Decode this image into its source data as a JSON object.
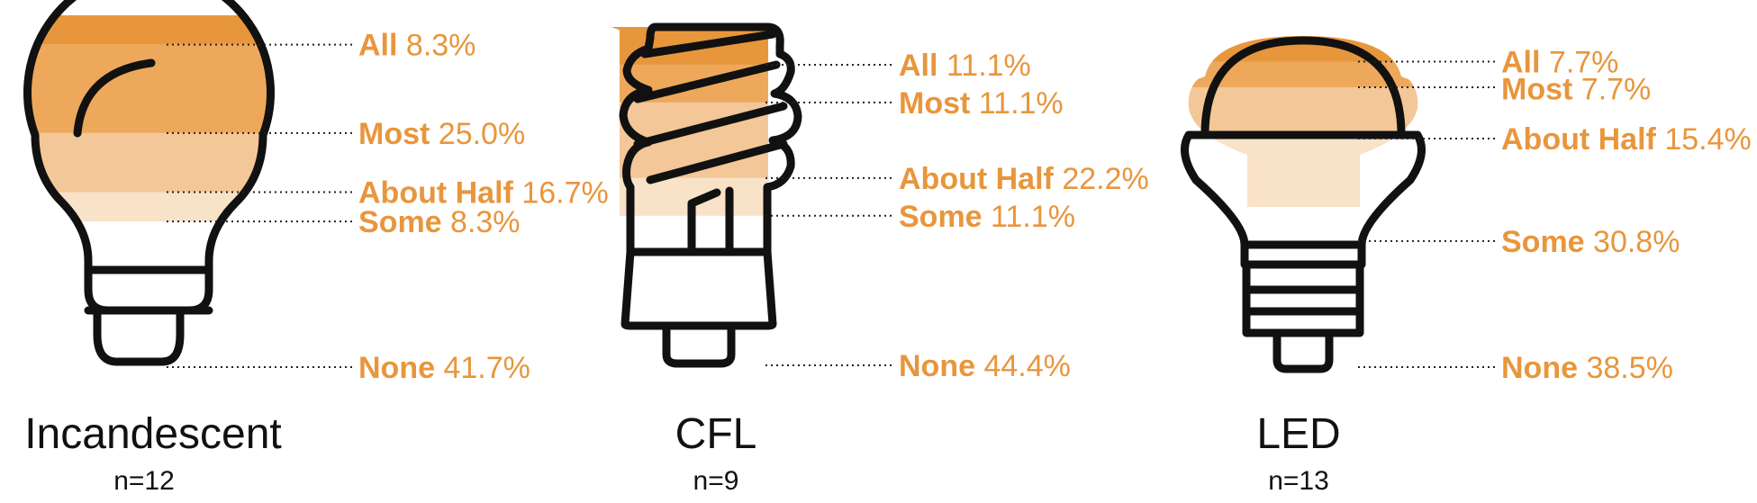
{
  "chart_data": {
    "type": "stacked-bar",
    "colors": {
      "All": "#e8963c",
      "Most": "#eea85b",
      "About Half": "#f3c797",
      "Some": "#f8e2c8",
      "None": "#ffffff",
      "label": "#e8963c",
      "outline": "#111111"
    },
    "bulbs": [
      {
        "title": "Incandescent",
        "n_label": "n=12",
        "icon": "incandescent-bulb-icon",
        "segments": [
          {
            "category": "All",
            "value": 8.3,
            "label": "8.3%"
          },
          {
            "category": "Most",
            "value": 25.0,
            "label": "25.0%"
          },
          {
            "category": "About Half",
            "value": 16.7,
            "label": "16.7%"
          },
          {
            "category": "Some",
            "value": 8.3,
            "label": "8.3%"
          },
          {
            "category": "None",
            "value": 41.7,
            "label": "41.7%"
          }
        ]
      },
      {
        "title": "CFL",
        "n_label": "n=9",
        "icon": "cfl-bulb-icon",
        "segments": [
          {
            "category": "All",
            "value": 11.1,
            "label": "11.1%"
          },
          {
            "category": "Most",
            "value": 11.1,
            "label": "11.1%"
          },
          {
            "category": "About Half",
            "value": 22.2,
            "label": "22.2%"
          },
          {
            "category": "Some",
            "value": 11.1,
            "label": "11.1%"
          },
          {
            "category": "None",
            "value": 44.4,
            "label": "44.4%"
          }
        ]
      },
      {
        "title": "LED",
        "n_label": "n=13",
        "icon": "led-bulb-icon",
        "segments": [
          {
            "category": "All",
            "value": 7.7,
            "label": "7.7%"
          },
          {
            "category": "Most",
            "value": 7.7,
            "label": "7.7%"
          },
          {
            "category": "About Half",
            "value": 15.4,
            "label": "15.4%"
          },
          {
            "category": "Some",
            "value": 30.8,
            "label": "30.8%"
          },
          {
            "category": "None",
            "value": 38.5,
            "label": "38.5%"
          }
        ]
      }
    ]
  }
}
